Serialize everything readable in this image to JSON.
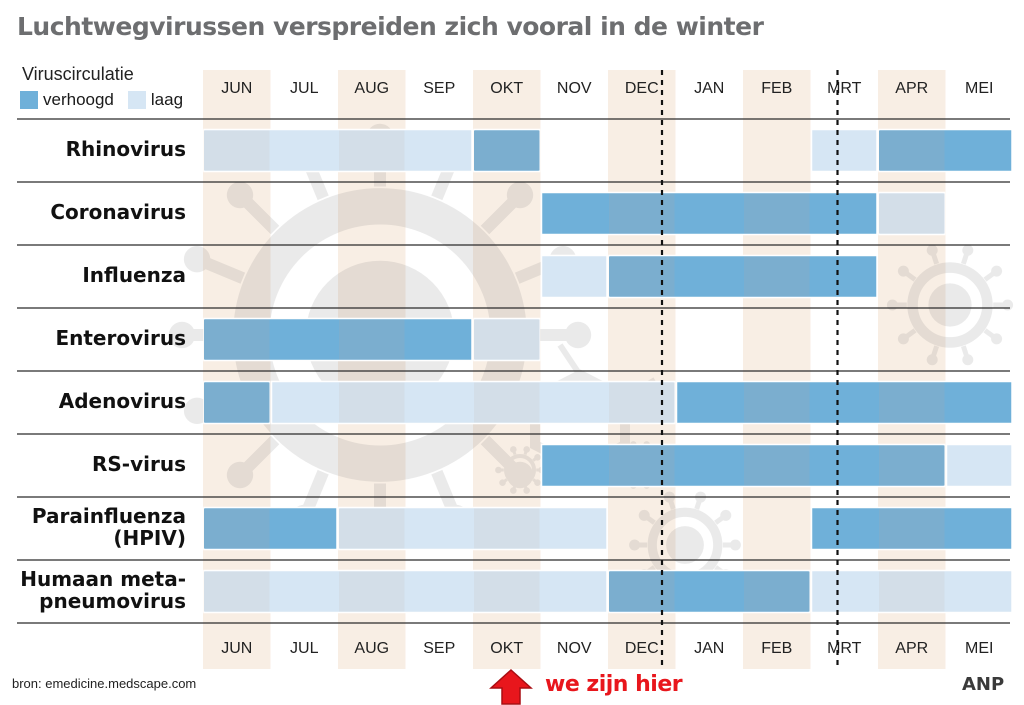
{
  "title": "Luchtwegvirussen verspreiden zich vooral in de winter",
  "legend": {
    "title": "Viruscirculatie",
    "items": [
      {
        "label": "verhoogd",
        "color": "#6fb0d9"
      },
      {
        "label": "laag",
        "color": "#d6e6f4"
      }
    ],
    "position": "top-left"
  },
  "footer": {
    "source": "bron: emedicine.medscape.com",
    "marker_text": "we zijn hier",
    "brand": "ANP"
  },
  "colors": {
    "high": "#6fb0d9",
    "high_overlap": "#7baecf",
    "low": "#d6e6f4",
    "low_overlap": "#d3dee8",
    "month_stripe": "#f8eee4",
    "marker": "#e8161c",
    "title": "#6d6e70"
  },
  "chart_data": {
    "type": "gantt",
    "months": [
      "JUN",
      "JUL",
      "AUG",
      "SEP",
      "OKT",
      "NOV",
      "DEC",
      "JAN",
      "FEB",
      "MRT",
      "APR",
      "MEI"
    ],
    "shaded_months": [
      "JUN",
      "AUG",
      "OKT",
      "DEC",
      "FEB",
      "APR"
    ],
    "winter_boundaries": [
      6.8,
      9.4
    ],
    "current_month": "OKT",
    "levels": {
      "verhoogd": "high",
      "laag": "low"
    },
    "viruses": [
      {
        "name": "Rhinovirus",
        "segments": [
          {
            "start": 0,
            "end": 4,
            "level": "low"
          },
          {
            "start": 4,
            "end": 5,
            "level": "high"
          },
          {
            "start": 9,
            "end": 10,
            "level": "low"
          },
          {
            "start": 10,
            "end": 12,
            "level": "high"
          }
        ]
      },
      {
        "name": "Coronavirus",
        "segments": [
          {
            "start": 5,
            "end": 10,
            "level": "high"
          },
          {
            "start": 10,
            "end": 11,
            "level": "low"
          }
        ]
      },
      {
        "name": "Influenza",
        "segments": [
          {
            "start": 5,
            "end": 6,
            "level": "low"
          },
          {
            "start": 6,
            "end": 10,
            "level": "high"
          }
        ]
      },
      {
        "name": "Enterovirus",
        "segments": [
          {
            "start": 0,
            "end": 4,
            "level": "high"
          },
          {
            "start": 4,
            "end": 5,
            "level": "low"
          }
        ]
      },
      {
        "name": "Adenovirus",
        "segments": [
          {
            "start": 0,
            "end": 1,
            "level": "high"
          },
          {
            "start": 1,
            "end": 7,
            "level": "low"
          },
          {
            "start": 7,
            "end": 12,
            "level": "high"
          }
        ]
      },
      {
        "name": "RS-virus",
        "segments": [
          {
            "start": 5,
            "end": 11,
            "level": "high"
          },
          {
            "start": 11,
            "end": 12,
            "level": "low"
          }
        ]
      },
      {
        "name": "Parainfluenza (HPIV)",
        "lines": [
          "Parainfluenza",
          "(HPIV)"
        ],
        "segments": [
          {
            "start": 0,
            "end": 2,
            "level": "high"
          },
          {
            "start": 2,
            "end": 6,
            "level": "low"
          },
          {
            "start": 9,
            "end": 12,
            "level": "high"
          }
        ]
      },
      {
        "name": "Humaan meta-pneumovirus",
        "lines": [
          "Humaan meta-",
          "pneumovirus"
        ],
        "segments": [
          {
            "start": 0,
            "end": 6,
            "level": "low"
          },
          {
            "start": 6,
            "end": 9,
            "level": "high"
          },
          {
            "start": 9,
            "end": 12,
            "level": "low"
          }
        ]
      }
    ]
  }
}
